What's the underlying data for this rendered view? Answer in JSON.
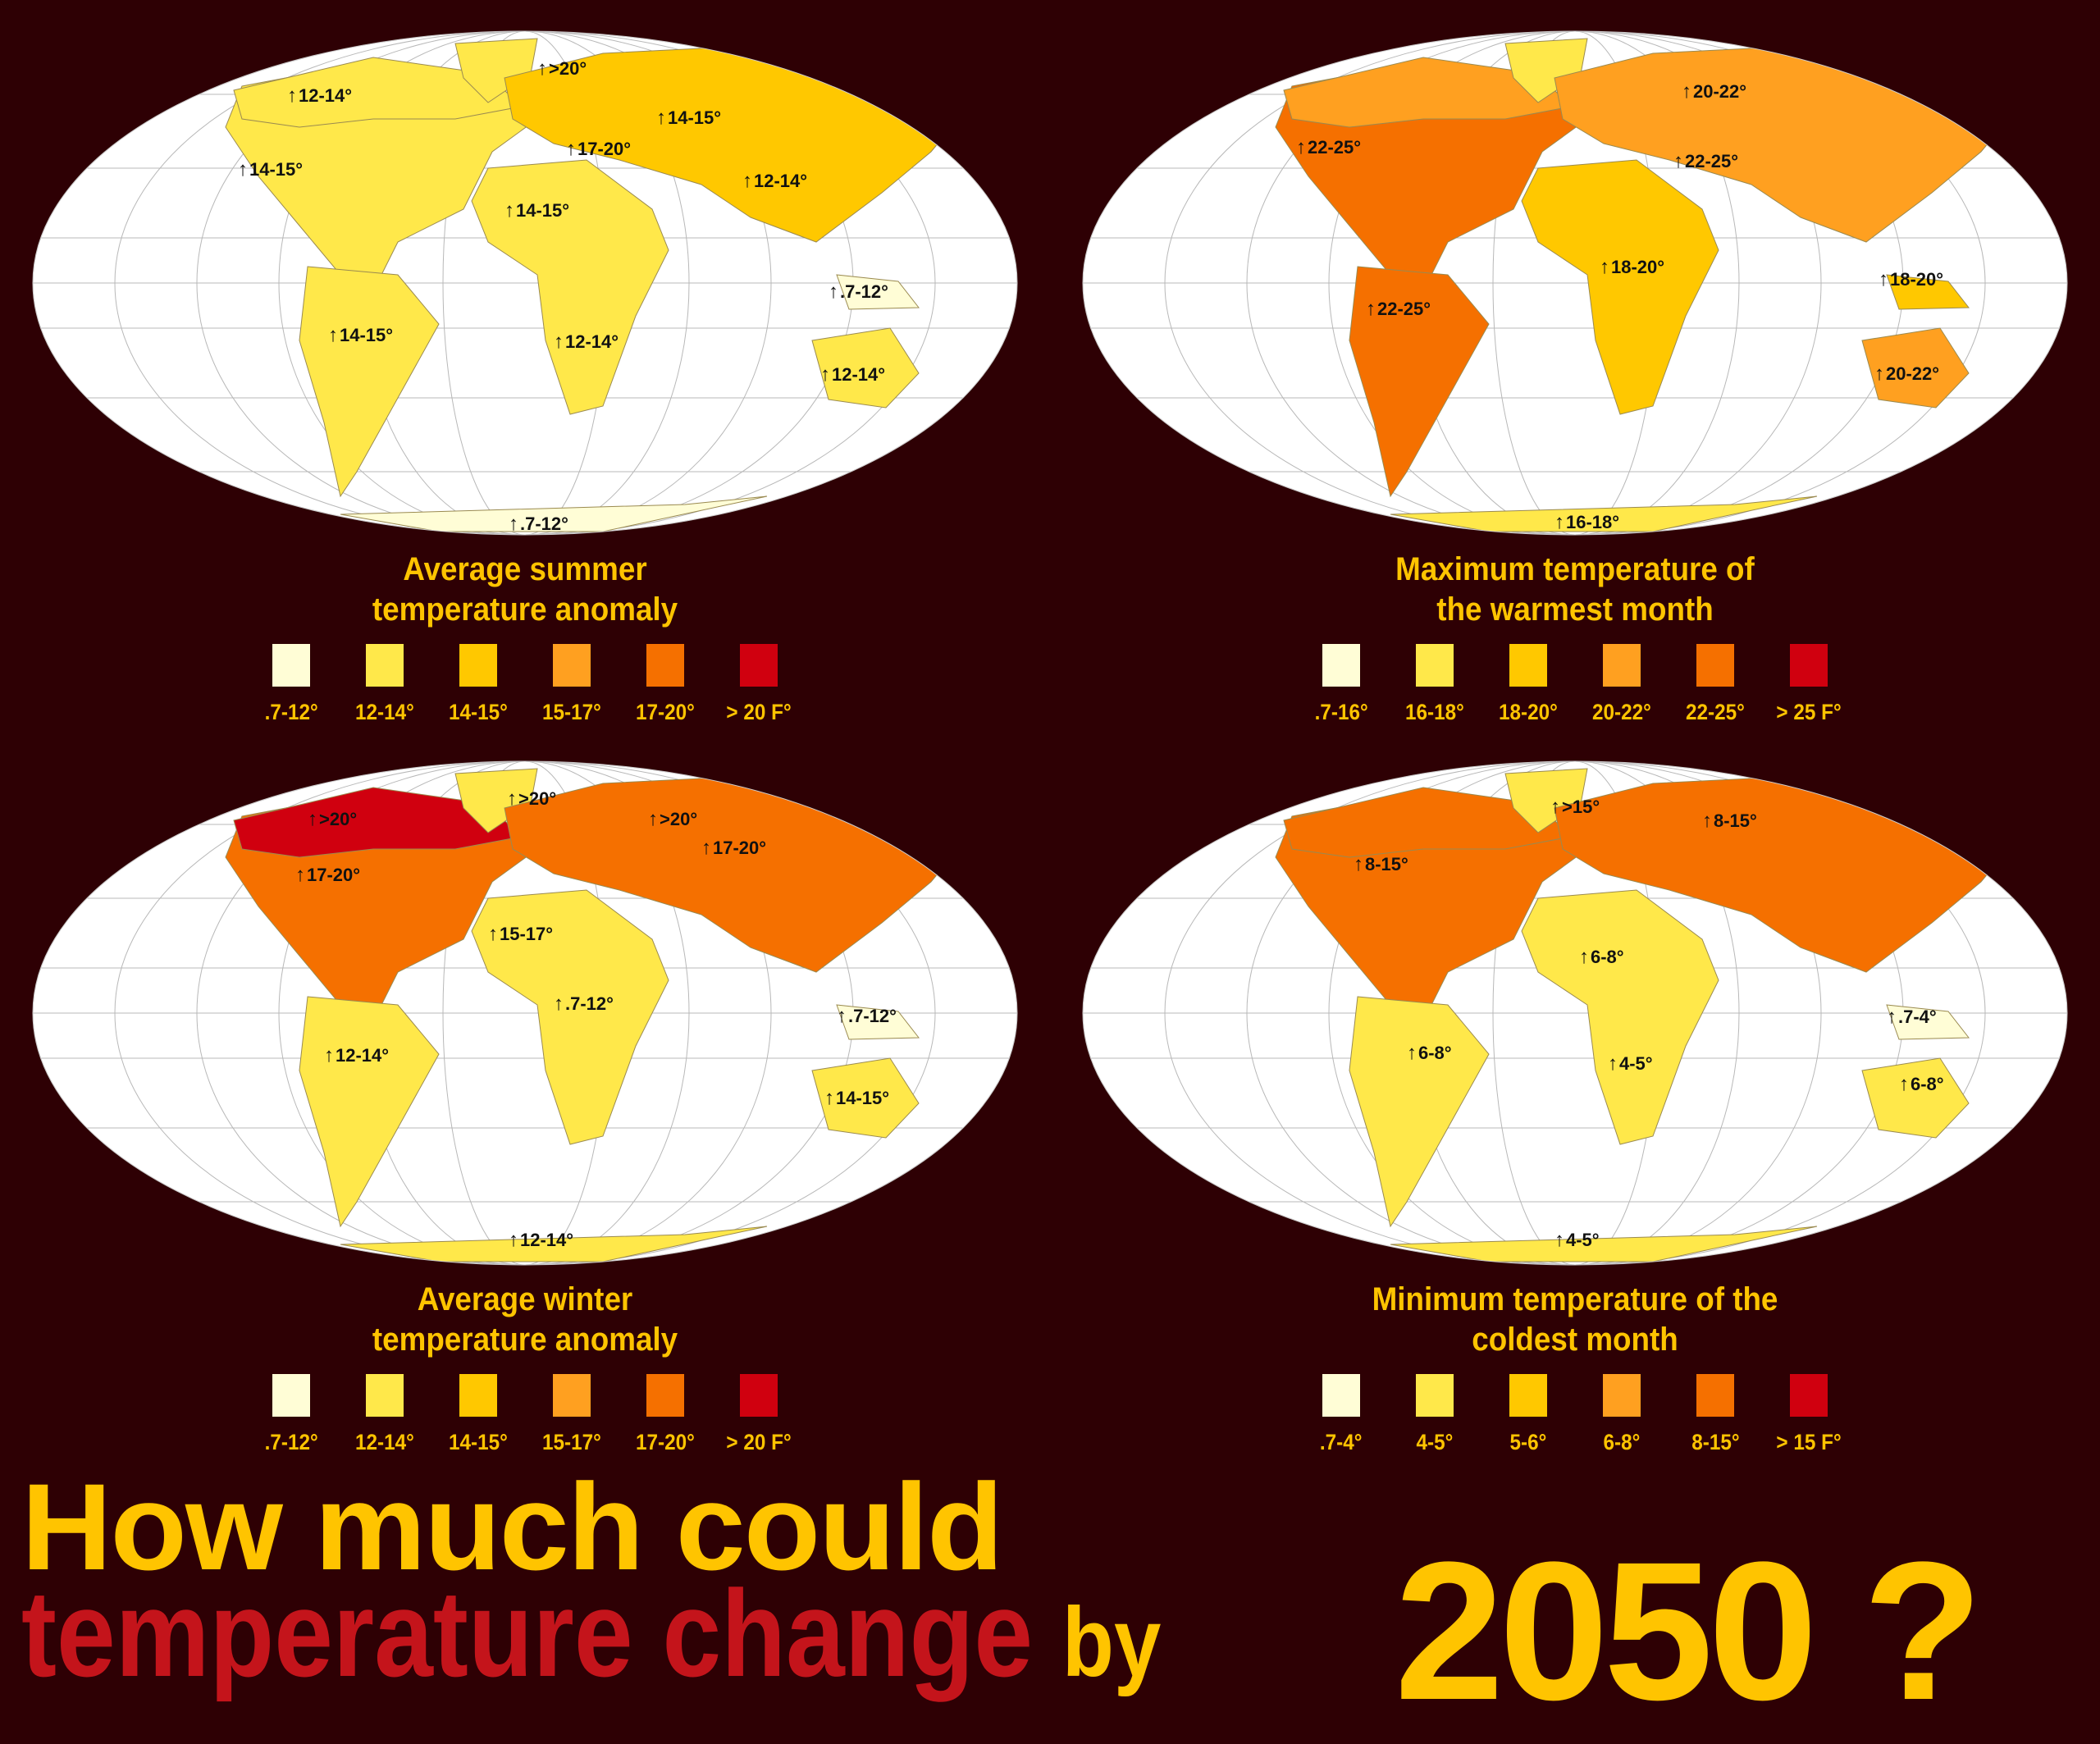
{
  "colors": {
    "background": "#2E0004",
    "title_yellow": "#FFC400",
    "title_red": "#C4141B",
    "ocean": "#FFFFFF",
    "grid": "#B8B8B8"
  },
  "maps": [
    {
      "title_line1": "Average summer",
      "title_line2": "temperature anomaly",
      "legend": [
        {
          "label": ".7-12°",
          "color": "#FFFDD6"
        },
        {
          "label": "12-14°",
          "color": "#FFE84A"
        },
        {
          "label": "14-15°",
          "color": "#FFC800"
        },
        {
          "label": "15-17°",
          "color": "#FFA020"
        },
        {
          "label": "17-20°",
          "color": "#F57000"
        },
        {
          "label": "> 20 F°",
          "color": "#D0000F"
        }
      ],
      "labels": [
        ">20°",
        "12-14°",
        "14-15°",
        "17-20°",
        "14-15°",
        "12-14°",
        "14-15°",
        ".7-12°",
        "14-15°",
        "12-14°",
        "12-14°",
        ".7-12°"
      ],
      "region_colors": {
        "north_america": "#FFE84A",
        "canada_north": "#FFE84A",
        "greenland": "#FFE84A",
        "south_america": "#FFE84A",
        "eurasia": "#FFC800",
        "africa": "#FFE84A",
        "australia": "#FFE84A",
        "islands": "#FFFDD6",
        "antarctica": "#FFFDD6"
      }
    },
    {
      "title_line1": "Maximum temperature of",
      "title_line2": "the warmest month",
      "legend": [
        {
          "label": ".7-16°",
          "color": "#FFFDD6"
        },
        {
          "label": "16-18°",
          "color": "#FFE84A"
        },
        {
          "label": "18-20°",
          "color": "#FFC800"
        },
        {
          "label": "20-22°",
          "color": "#FFA020"
        },
        {
          "label": "22-25°",
          "color": "#F57000"
        },
        {
          "label": "> 25 F°",
          "color": "#D0000F"
        }
      ],
      "labels": [
        "20-22°",
        "22-25°",
        "22-25°",
        "18-20°",
        "18-20°",
        "22-25°",
        "20-22°",
        "16-18°"
      ],
      "region_colors": {
        "north_america": "#F57000",
        "canada_north": "#FFA020",
        "greenland": "#FFE84A",
        "south_america": "#F57000",
        "eurasia": "#FFA020",
        "africa": "#FFC800",
        "australia": "#FFA020",
        "islands": "#FFC800",
        "antarctica": "#FFE84A"
      }
    },
    {
      "title_line1": "Average winter",
      "title_line2": "temperature anomaly",
      "legend": [
        {
          "label": ".7-12°",
          "color": "#FFFDD6"
        },
        {
          "label": "12-14°",
          "color": "#FFE84A"
        },
        {
          "label": "14-15°",
          "color": "#FFC800"
        },
        {
          "label": "15-17°",
          "color": "#FFA020"
        },
        {
          "label": "17-20°",
          "color": "#F57000"
        },
        {
          "label": "> 20 F°",
          "color": "#D0000F"
        }
      ],
      "labels": [
        ">20°",
        ">20°",
        ">20°",
        "17-20°",
        "17-20°",
        "15-17°",
        ".7-12°",
        ".7-12°",
        "12-14°",
        "14-15°",
        "12-14°"
      ],
      "region_colors": {
        "north_america": "#F57000",
        "canada_north": "#D0000F",
        "greenland": "#FFE84A",
        "south_america": "#FFE84A",
        "eurasia": "#F57000",
        "africa": "#FFE84A",
        "australia": "#FFE84A",
        "islands": "#FFFDD6",
        "antarctica": "#FFE84A"
      }
    },
    {
      "title_line1": "Minimum temperature of the",
      "title_line2": "coldest month",
      "legend": [
        {
          "label": ".7-4°",
          "color": "#FFFDD6"
        },
        {
          "label": "4-5°",
          "color": "#FFE84A"
        },
        {
          "label": "5-6°",
          "color": "#FFC800"
        },
        {
          "label": "6-8°",
          "color": "#FFA020"
        },
        {
          "label": "8-15°",
          "color": "#F57000"
        },
        {
          "label": "> 15 F°",
          "color": "#D0000F"
        }
      ],
      "labels": [
        ">15°",
        "8-15°",
        "8-15°",
        "6-8°",
        ".7-4°",
        "6-8°",
        "4-5°",
        "6-8°",
        "4-5°"
      ],
      "region_colors": {
        "north_america": "#F57000",
        "canada_north": "#F57000",
        "greenland": "#FFE84A",
        "south_america": "#FFE84A",
        "eurasia": "#F57000",
        "africa": "#FFE84A",
        "australia": "#FFE84A",
        "islands": "#FFFDD6",
        "antarctica": "#FFE84A"
      }
    }
  ],
  "headline": {
    "line1": "How much could",
    "line2_red": "temperature change",
    "line2_by": "by",
    "year": "2050",
    "question": "?"
  }
}
